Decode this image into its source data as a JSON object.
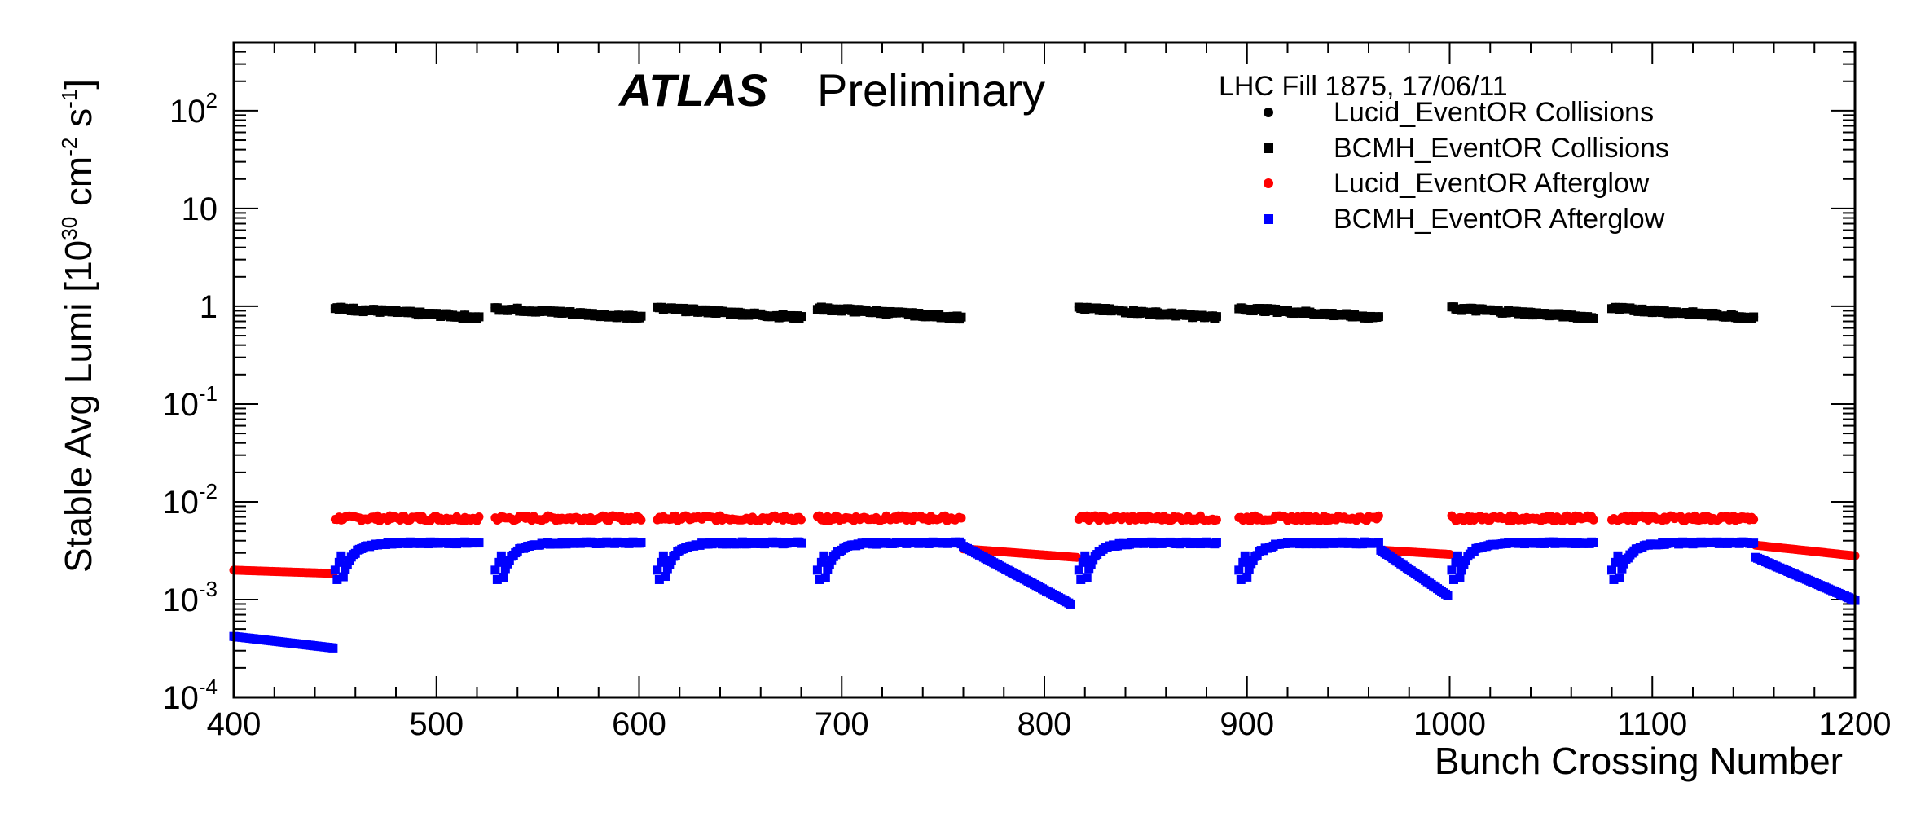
{
  "chart_data": {
    "type": "scatter",
    "title": "",
    "experiment": "ATLAS",
    "status": "Preliminary",
    "fill_info": "LHC Fill 1875, 17/06/11",
    "xlabel": "Bunch Crossing Number",
    "ylabel_parts": {
      "base": "Stable Avg Lumi [10",
      "exp1": "30",
      "mid": " cm",
      "exp2": "-2",
      "mid2": " s",
      "exp3": "-1",
      "end": "]"
    },
    "xlim": [
      400,
      1200
    ],
    "ylim": [
      0.0001,
      500
    ],
    "y_scale": "log",
    "x_ticks": [
      "400",
      "500",
      "600",
      "700",
      "800",
      "900",
      "1000",
      "1100",
      "1200"
    ],
    "y_ticks": [
      {
        "value": 0.0001,
        "base": "10",
        "exp": "-4"
      },
      {
        "value": 0.001,
        "base": "10",
        "exp": "-3"
      },
      {
        "value": 0.01,
        "base": "10",
        "exp": "-2"
      },
      {
        "value": 0.1,
        "base": "10",
        "exp": "-1"
      },
      {
        "value": 1,
        "base": "1",
        "exp": ""
      },
      {
        "value": 10,
        "base": "10",
        "exp": ""
      },
      {
        "value": 100,
        "base": "10",
        "exp": "2"
      }
    ],
    "legend_position": "top-right",
    "series": [
      {
        "name": "Lucid_EventOR Collisions",
        "color": "#000000",
        "marker": "circle"
      },
      {
        "name": "BCMH_EventOR Collisions",
        "color": "#000000",
        "marker": "square"
      },
      {
        "name": "Lucid_EventOR Afterglow",
        "color": "#ff0000",
        "marker": "circle"
      },
      {
        "name": "BCMH_EventOR Afterglow",
        "color": "#0000ff",
        "marker": "square"
      }
    ],
    "train_starts": [
      450,
      529,
      609,
      688,
      817,
      896,
      1001,
      1080
    ],
    "train_ends": [
      521,
      601,
      680,
      759,
      885,
      965,
      1071,
      1150
    ],
    "collision_level_approx": 0.85,
    "lucid_afterglow_during_trains_approx": 0.0068,
    "lucid_afterglow_gap_segments": [
      {
        "x": [
          400,
          449
        ],
        "y": [
          0.002,
          0.00185
        ]
      },
      {
        "x": [
          760,
          816
        ],
        "y": [
          0.0033,
          0.0027
        ]
      },
      {
        "x": [
          966,
          1000
        ],
        "y": [
          0.0032,
          0.0029
        ]
      },
      {
        "x": [
          1151,
          1200
        ],
        "y": [
          0.0036,
          0.0028
        ]
      }
    ],
    "bcmh_afterglow_during_trains_approx": 0.0038,
    "bcmh_afterglow_gap_segments": [
      {
        "x": [
          400,
          449
        ],
        "y": [
          0.00042,
          0.00032
        ]
      },
      {
        "x": [
          760,
          813
        ],
        "y": [
          0.0035,
          0.0009
        ]
      },
      {
        "x": [
          966,
          999
        ],
        "y": [
          0.0032,
          0.0011
        ]
      },
      {
        "x": [
          1151,
          1200
        ],
        "y": [
          0.0027,
          0.00098
        ]
      }
    ]
  }
}
